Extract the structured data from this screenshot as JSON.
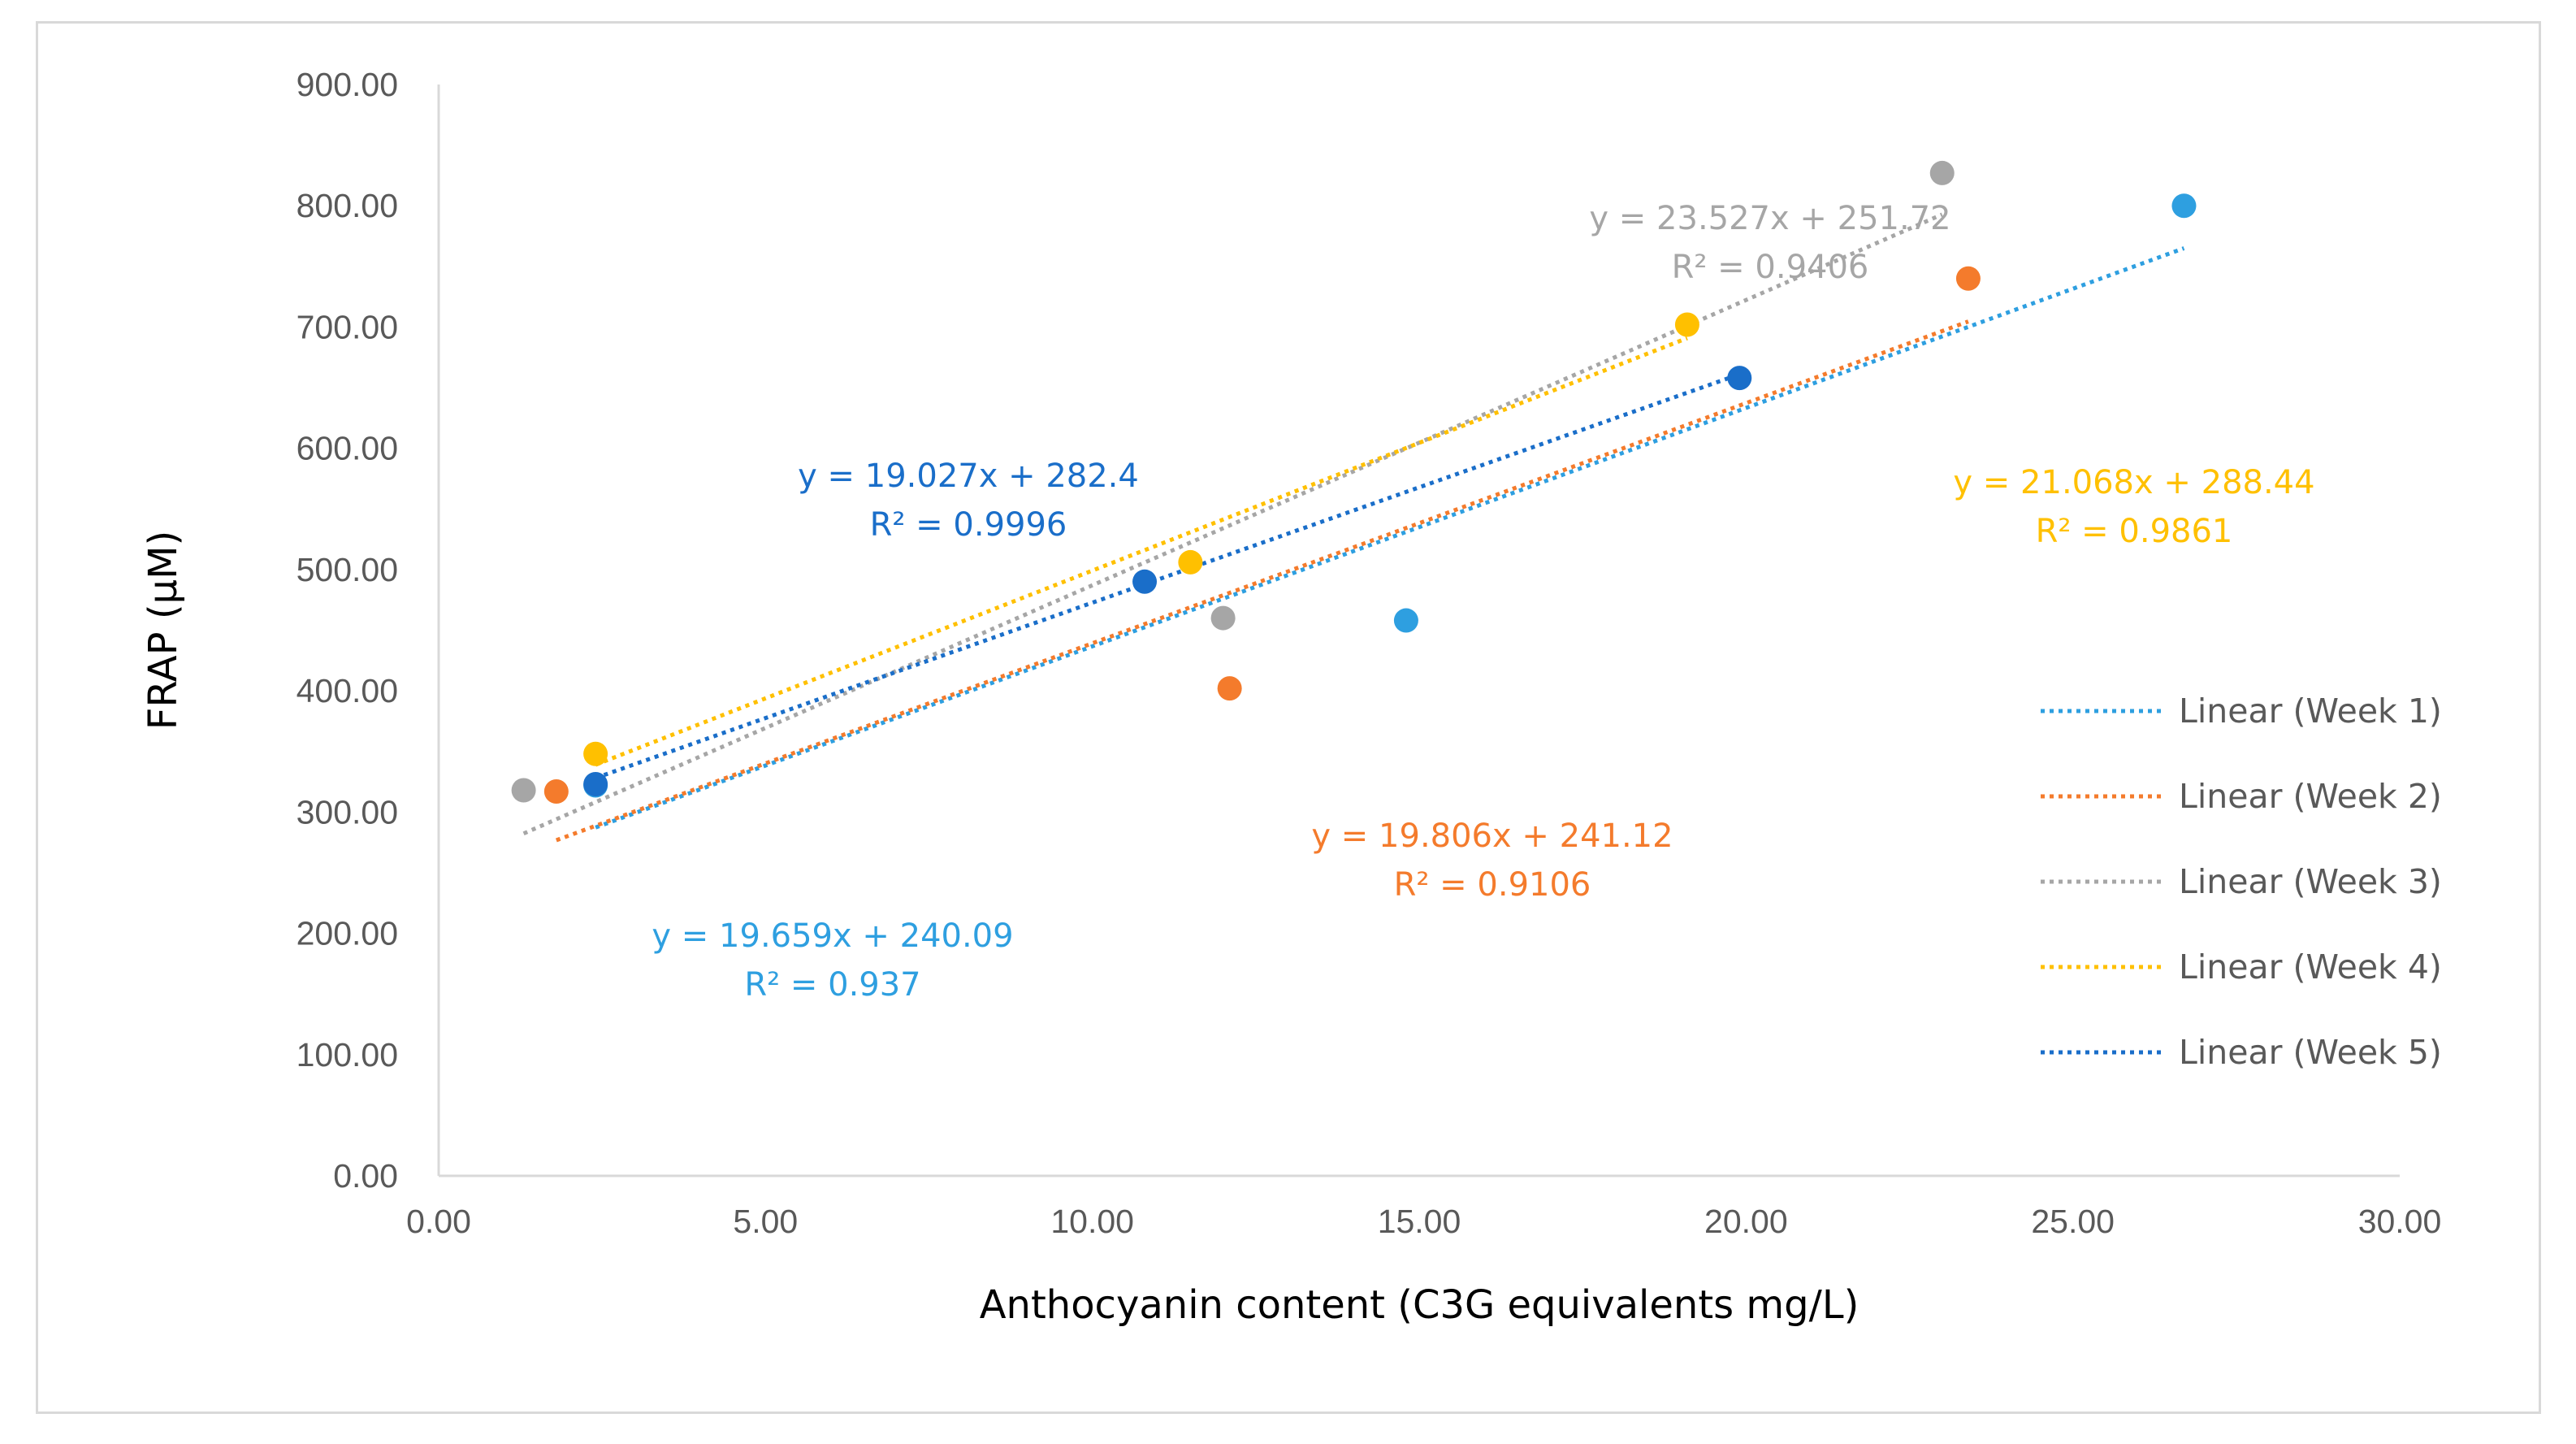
{
  "chart_data": {
    "type": "scatter",
    "title": "",
    "xlabel": "Anthocyanin  content (C3G equivalents mg/L)",
    "ylabel": "FRAP (μM)",
    "xlim": [
      0,
      30
    ],
    "ylim": [
      0,
      900
    ],
    "x_ticks": [
      "0.00",
      "5.00",
      "10.00",
      "15.00",
      "20.00",
      "25.00",
      "30.00"
    ],
    "y_ticks": [
      "0.00",
      "100.00",
      "200.00",
      "300.00",
      "400.00",
      "500.00",
      "600.00",
      "700.00",
      "800.00",
      "900.00"
    ],
    "grid": false,
    "legend_position": "right",
    "series": [
      {
        "name": "Week 1",
        "legend": "Linear (Week 1)",
        "color": "#2e9fe0",
        "points": [
          [
            2.4,
            322
          ],
          [
            14.8,
            458
          ],
          [
            26.7,
            800
          ]
        ],
        "trend": {
          "slope": 19.659,
          "intercept": 240.09,
          "x_range": [
            2.4,
            26.7
          ]
        },
        "equation": "y = 19.659x + 240.09",
        "r2": "R² = 0.937"
      },
      {
        "name": "Week 2",
        "legend": "Linear (Week 2)",
        "color": "#f47b2c",
        "points": [
          [
            1.8,
            317
          ],
          [
            12.1,
            402
          ],
          [
            23.4,
            740
          ]
        ],
        "trend": {
          "slope": 19.806,
          "intercept": 241.12,
          "x_range": [
            1.8,
            23.4
          ]
        },
        "equation": "y = 19.806x + 241.12",
        "r2": "R² = 0.9106"
      },
      {
        "name": "Week 3",
        "legend": "Linear (Week 3)",
        "color": "#a6a6a6",
        "points": [
          [
            1.3,
            318
          ],
          [
            12.0,
            460
          ],
          [
            23.0,
            827
          ]
        ],
        "trend": {
          "slope": 23.527,
          "intercept": 251.72,
          "x_range": [
            1.3,
            23.0
          ]
        },
        "equation": "y = 23.527x + 251.72",
        "r2": "R² = 0.9406"
      },
      {
        "name": "Week 4",
        "legend": "Linear (Week 4)",
        "color": "#ffc000",
        "points": [
          [
            2.4,
            348
          ],
          [
            11.5,
            506
          ],
          [
            19.1,
            702
          ]
        ],
        "trend": {
          "slope": 21.068,
          "intercept": 288.44,
          "x_range": [
            2.4,
            19.1
          ]
        },
        "equation": "y = 21.068x + 288.44",
        "r2": "R² = 0.9861"
      },
      {
        "name": "Week 5",
        "legend": "Linear (Week 5)",
        "color": "#1a6ec9",
        "points": [
          [
            2.4,
            323
          ],
          [
            10.8,
            490
          ],
          [
            19.9,
            658
          ]
        ],
        "trend": {
          "slope": 19.027,
          "intercept": 282.4,
          "x_range": [
            2.4,
            19.9
          ]
        },
        "equation": "y = 19.027x + 282.4",
        "r2": "R² = 0.9996"
      }
    ]
  }
}
